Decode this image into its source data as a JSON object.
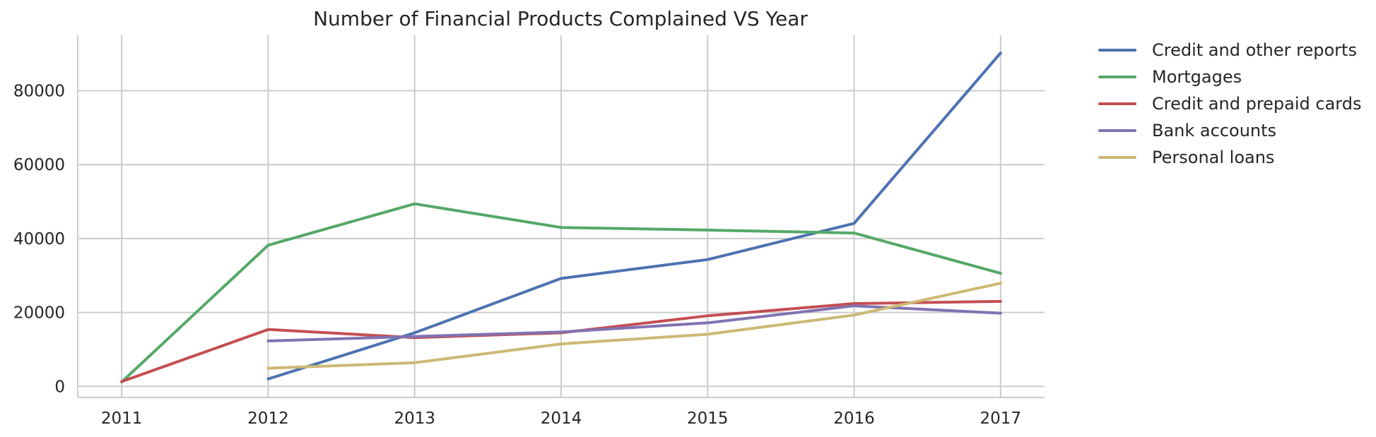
{
  "chart_data": {
    "type": "line",
    "title": "Number of Financial Products Complained VS Year",
    "xlabel": "",
    "ylabel": "",
    "x": [
      2011,
      2012,
      2013,
      2014,
      2015,
      2016,
      2017
    ],
    "xlim": [
      2010.7,
      2017.3
    ],
    "ylim": [
      -3000,
      95000
    ],
    "yticks": [
      0,
      20000,
      40000,
      60000,
      80000
    ],
    "grid": true,
    "legend_position": "outside-top-right",
    "series": [
      {
        "name": "Credit and other reports",
        "color": "#4c72b0",
        "values": [
          null,
          2000,
          14500,
          29200,
          34300,
          44100,
          90200
        ]
      },
      {
        "name": "Mortgages",
        "color": "#55a868",
        "values": [
          1200,
          38200,
          49400,
          43000,
          42300,
          41500,
          30600
        ]
      },
      {
        "name": "Credit and prepaid cards",
        "color": "#c44e52",
        "values": [
          1300,
          15400,
          13200,
          14500,
          19100,
          22400,
          23000
        ]
      },
      {
        "name": "Bank accounts",
        "color": "#8172b2",
        "values": [
          null,
          12300,
          13500,
          14700,
          17200,
          21800,
          19800
        ]
      },
      {
        "name": "Personal loans",
        "color": "#ccb974",
        "values": [
          null,
          4900,
          6400,
          11500,
          14100,
          19300,
          27900
        ]
      }
    ]
  }
}
